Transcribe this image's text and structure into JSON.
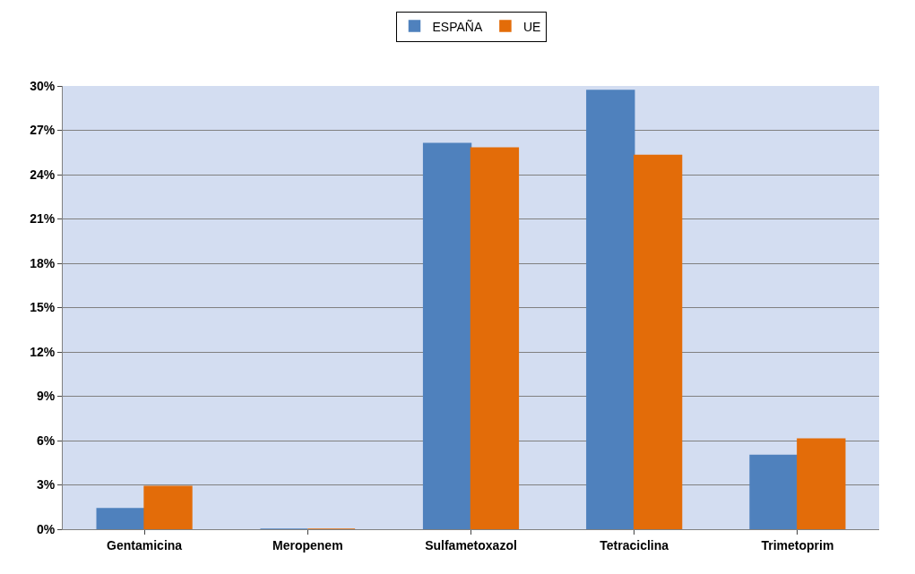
{
  "chart_data": {
    "type": "bar",
    "categories": [
      "Gentamicina",
      "Meropenem",
      "Sulfametoxazol",
      "Tetraciclina",
      "Trimetoprim"
    ],
    "series": [
      {
        "name": "ESPAÑA",
        "color": "#4f81bd",
        "values": [
          1.4,
          0,
          26.1,
          29.7,
          5.0
        ]
      },
      {
        "name": "UE",
        "color": "#e36c09",
        "values": [
          2.9,
          0,
          25.8,
          25.3,
          6.1
        ]
      }
    ],
    "ylim": [
      0,
      30
    ],
    "yticks": [
      {
        "value": 0,
        "label": "0%"
      },
      {
        "value": 3,
        "label": "3%"
      },
      {
        "value": 6,
        "label": "6%"
      },
      {
        "value": 9,
        "label": "9%"
      },
      {
        "value": 12,
        "label": "12%"
      },
      {
        "value": 15,
        "label": "15%"
      },
      {
        "value": 18,
        "label": "18%"
      },
      {
        "value": 21,
        "label": "21%"
      },
      {
        "value": 24,
        "label": "24%"
      },
      {
        "value": 27,
        "label": "27%"
      },
      {
        "value": 30,
        "label": "30%"
      }
    ],
    "grid": "y",
    "legend": "top"
  }
}
